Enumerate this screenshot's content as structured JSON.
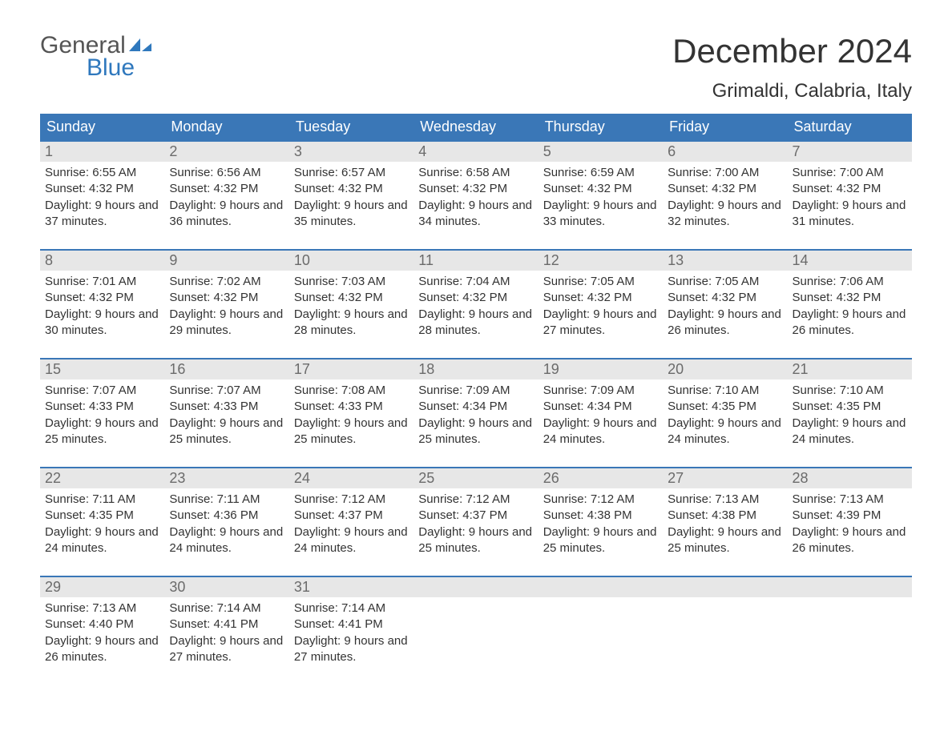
{
  "brand": {
    "top": "General",
    "bottom": "Blue",
    "shape_color": "#2f78bd"
  },
  "title": "December 2024",
  "location": "Grimaldi, Calabria, Italy",
  "colors": {
    "header_bg": "#3a77b7",
    "header_text": "#ffffff",
    "daynum_bg": "#e7e7e7",
    "daynum_text": "#6b6b6b",
    "body_text": "#333333",
    "week_border": "#3a77b7"
  },
  "day_labels": [
    "Sunday",
    "Monday",
    "Tuesday",
    "Wednesday",
    "Thursday",
    "Friday",
    "Saturday"
  ],
  "weeks": [
    [
      {
        "n": "1",
        "sunrise": "6:55 AM",
        "sunset": "4:32 PM",
        "daylight": "9 hours and 37 minutes."
      },
      {
        "n": "2",
        "sunrise": "6:56 AM",
        "sunset": "4:32 PM",
        "daylight": "9 hours and 36 minutes."
      },
      {
        "n": "3",
        "sunrise": "6:57 AM",
        "sunset": "4:32 PM",
        "daylight": "9 hours and 35 minutes."
      },
      {
        "n": "4",
        "sunrise": "6:58 AM",
        "sunset": "4:32 PM",
        "daylight": "9 hours and 34 minutes."
      },
      {
        "n": "5",
        "sunrise": "6:59 AM",
        "sunset": "4:32 PM",
        "daylight": "9 hours and 33 minutes."
      },
      {
        "n": "6",
        "sunrise": "7:00 AM",
        "sunset": "4:32 PM",
        "daylight": "9 hours and 32 minutes."
      },
      {
        "n": "7",
        "sunrise": "7:00 AM",
        "sunset": "4:32 PM",
        "daylight": "9 hours and 31 minutes."
      }
    ],
    [
      {
        "n": "8",
        "sunrise": "7:01 AM",
        "sunset": "4:32 PM",
        "daylight": "9 hours and 30 minutes."
      },
      {
        "n": "9",
        "sunrise": "7:02 AM",
        "sunset": "4:32 PM",
        "daylight": "9 hours and 29 minutes."
      },
      {
        "n": "10",
        "sunrise": "7:03 AM",
        "sunset": "4:32 PM",
        "daylight": "9 hours and 28 minutes."
      },
      {
        "n": "11",
        "sunrise": "7:04 AM",
        "sunset": "4:32 PM",
        "daylight": "9 hours and 28 minutes."
      },
      {
        "n": "12",
        "sunrise": "7:05 AM",
        "sunset": "4:32 PM",
        "daylight": "9 hours and 27 minutes."
      },
      {
        "n": "13",
        "sunrise": "7:05 AM",
        "sunset": "4:32 PM",
        "daylight": "9 hours and 26 minutes."
      },
      {
        "n": "14",
        "sunrise": "7:06 AM",
        "sunset": "4:32 PM",
        "daylight": "9 hours and 26 minutes."
      }
    ],
    [
      {
        "n": "15",
        "sunrise": "7:07 AM",
        "sunset": "4:33 PM",
        "daylight": "9 hours and 25 minutes."
      },
      {
        "n": "16",
        "sunrise": "7:07 AM",
        "sunset": "4:33 PM",
        "daylight": "9 hours and 25 minutes."
      },
      {
        "n": "17",
        "sunrise": "7:08 AM",
        "sunset": "4:33 PM",
        "daylight": "9 hours and 25 minutes."
      },
      {
        "n": "18",
        "sunrise": "7:09 AM",
        "sunset": "4:34 PM",
        "daylight": "9 hours and 25 minutes."
      },
      {
        "n": "19",
        "sunrise": "7:09 AM",
        "sunset": "4:34 PM",
        "daylight": "9 hours and 24 minutes."
      },
      {
        "n": "20",
        "sunrise": "7:10 AM",
        "sunset": "4:35 PM",
        "daylight": "9 hours and 24 minutes."
      },
      {
        "n": "21",
        "sunrise": "7:10 AM",
        "sunset": "4:35 PM",
        "daylight": "9 hours and 24 minutes."
      }
    ],
    [
      {
        "n": "22",
        "sunrise": "7:11 AM",
        "sunset": "4:35 PM",
        "daylight": "9 hours and 24 minutes."
      },
      {
        "n": "23",
        "sunrise": "7:11 AM",
        "sunset": "4:36 PM",
        "daylight": "9 hours and 24 minutes."
      },
      {
        "n": "24",
        "sunrise": "7:12 AM",
        "sunset": "4:37 PM",
        "daylight": "9 hours and 24 minutes."
      },
      {
        "n": "25",
        "sunrise": "7:12 AM",
        "sunset": "4:37 PM",
        "daylight": "9 hours and 25 minutes."
      },
      {
        "n": "26",
        "sunrise": "7:12 AM",
        "sunset": "4:38 PM",
        "daylight": "9 hours and 25 minutes."
      },
      {
        "n": "27",
        "sunrise": "7:13 AM",
        "sunset": "4:38 PM",
        "daylight": "9 hours and 25 minutes."
      },
      {
        "n": "28",
        "sunrise": "7:13 AM",
        "sunset": "4:39 PM",
        "daylight": "9 hours and 26 minutes."
      }
    ],
    [
      {
        "n": "29",
        "sunrise": "7:13 AM",
        "sunset": "4:40 PM",
        "daylight": "9 hours and 26 minutes."
      },
      {
        "n": "30",
        "sunrise": "7:14 AM",
        "sunset": "4:41 PM",
        "daylight": "9 hours and 27 minutes."
      },
      {
        "n": "31",
        "sunrise": "7:14 AM",
        "sunset": "4:41 PM",
        "daylight": "9 hours and 27 minutes."
      },
      null,
      null,
      null,
      null
    ]
  ],
  "labels": {
    "sunrise_prefix": "Sunrise: ",
    "sunset_prefix": "Sunset: ",
    "daylight_prefix": "Daylight: "
  }
}
